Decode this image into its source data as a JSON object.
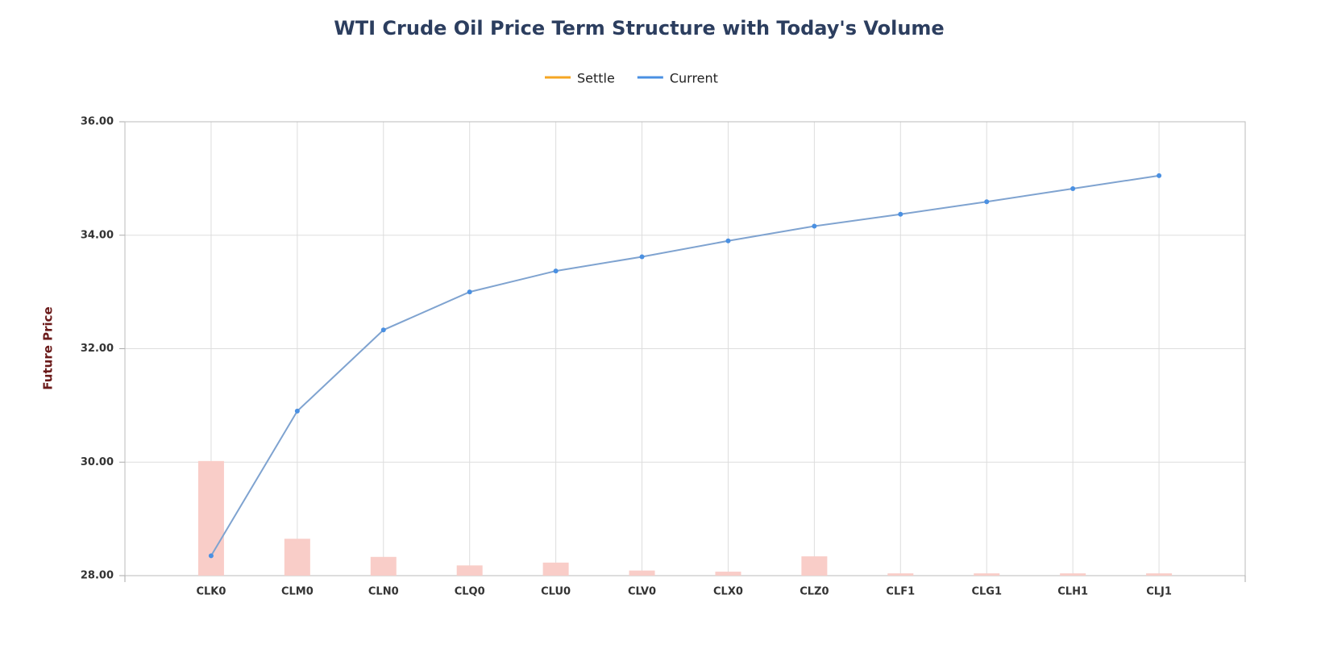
{
  "chart_data": {
    "type": "line",
    "title": "WTI Crude Oil Price Term Structure with Today's Volume",
    "y_label": "Future Price",
    "categories": [
      "CLK0",
      "CLM0",
      "CLN0",
      "CLQ0",
      "CLU0",
      "CLV0",
      "CLX0",
      "CLZ0",
      "CLF1",
      "CLG1",
      "CLH1",
      "CLJ1"
    ],
    "series": [
      {
        "name": "Settle",
        "color": "#f5a623",
        "values": [
          null,
          null,
          null,
          null,
          null,
          null,
          null,
          null,
          null,
          null,
          null,
          null
        ]
      },
      {
        "name": "Current",
        "color": "#4a90e2",
        "values": [
          28.35,
          30.9,
          32.33,
          33.0,
          33.37,
          33.62,
          33.9,
          34.16,
          34.37,
          34.59,
          34.82,
          35.05
        ]
      }
    ],
    "bar_series": {
      "color": "#f9cdc8",
      "values": [
        30.02,
        28.65,
        28.33,
        28.18,
        28.23,
        28.09,
        28.07,
        28.34,
        28.04,
        28.04,
        28.04,
        28.04
      ]
    },
    "ylim": [
      28,
      36
    ],
    "yticks": [
      {
        "value": 28,
        "label": "28.00"
      },
      {
        "value": 30,
        "label": "30.00"
      },
      {
        "value": 32,
        "label": "32.00"
      },
      {
        "value": 34,
        "label": "34.00"
      },
      {
        "value": 36,
        "label": "36.00"
      }
    ],
    "grid": true
  }
}
